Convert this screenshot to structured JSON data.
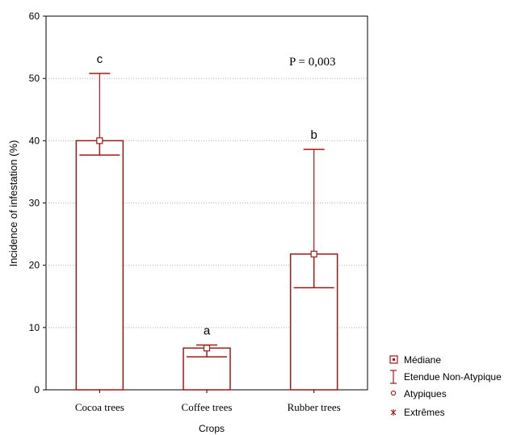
{
  "chart_data": {
    "type": "bar",
    "categories": [
      "Cocoa trees",
      "Coffee trees",
      "Rubber trees"
    ],
    "median": [
      40,
      6.7,
      21.8
    ],
    "q1": [
      37.7,
      5.3,
      16.4
    ],
    "range_max": [
      50.8,
      7.2,
      38.6
    ],
    "significance_letters": [
      "c",
      "a",
      "b"
    ],
    "annotation": "P = 0,003",
    "xlabel": "Crops",
    "ylabel": "Incidence of infestation (%)",
    "ylim": [
      0,
      60
    ],
    "yticks": [
      "0",
      "10",
      "20",
      "30",
      "40",
      "50",
      "60"
    ],
    "grid": "horizontal dotted",
    "legend_position": "bottom-right",
    "legend": [
      {
        "symbol": "median",
        "label": "Médiane"
      },
      {
        "symbol": "whisker",
        "label": "Etendue Non-Atypique"
      },
      {
        "symbol": "outlier",
        "label": "Atypiques"
      },
      {
        "symbol": "extreme",
        "label": "Extrêmes"
      }
    ],
    "colors": {
      "series": "#a01818",
      "frame": "#000000",
      "grid": "#b0b0b0"
    }
  }
}
